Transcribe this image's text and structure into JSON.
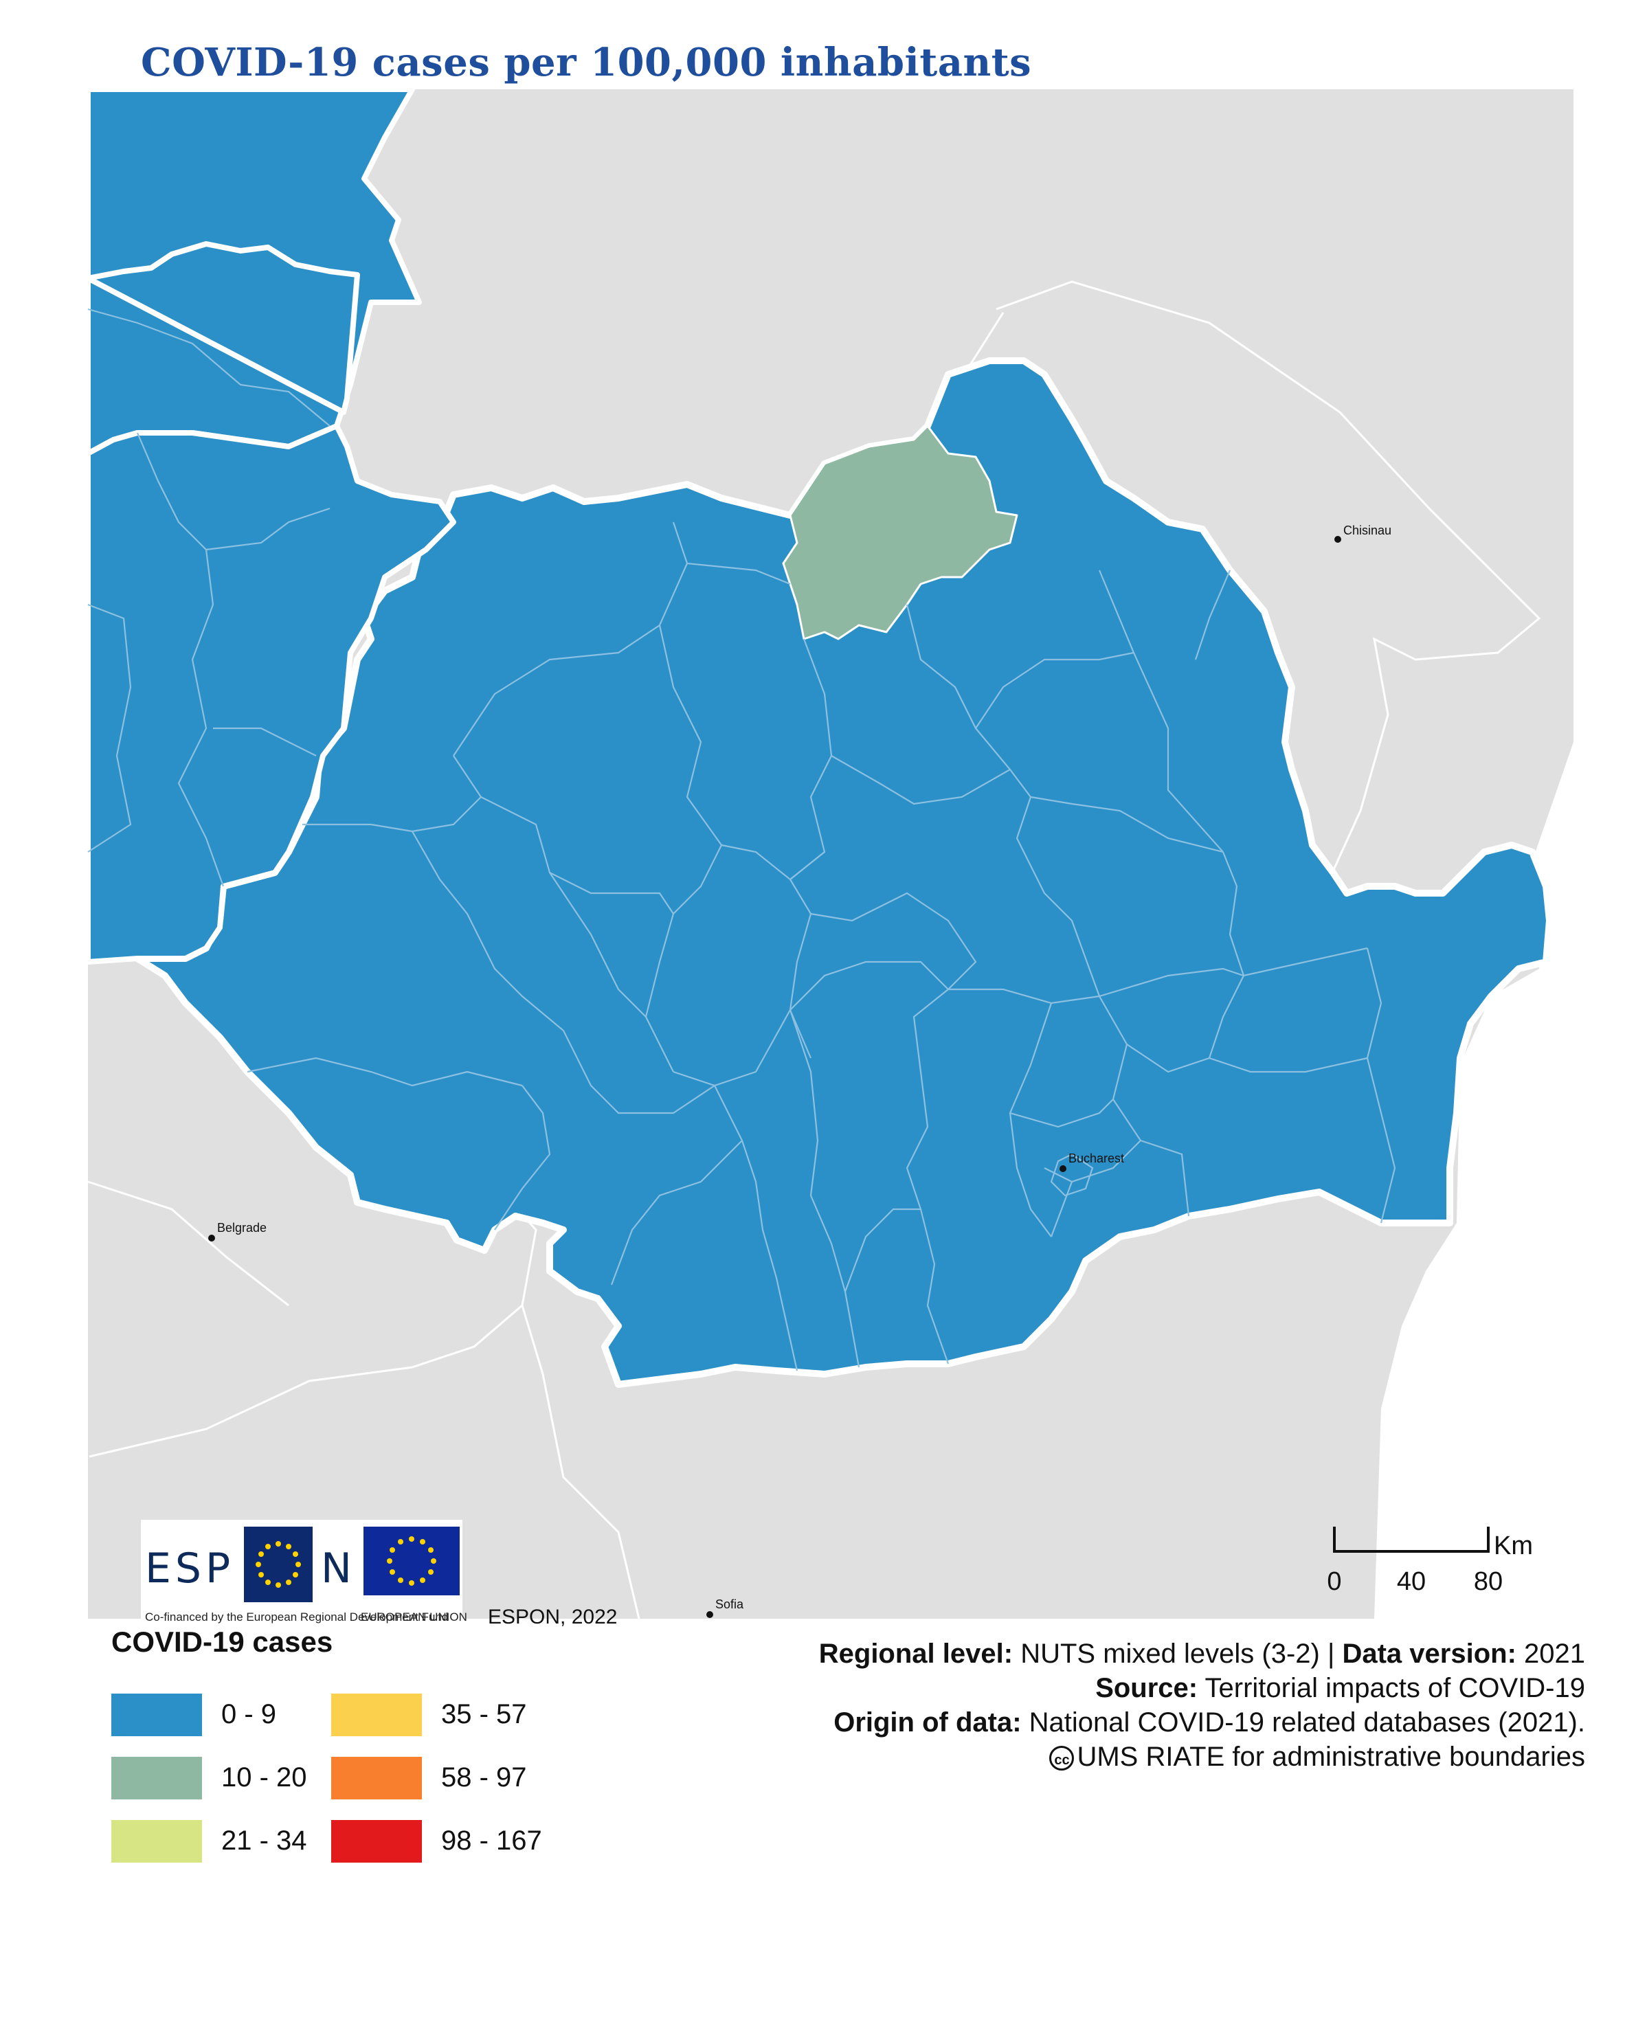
{
  "title": "COVID-19 cases per 100,000 inhabitants",
  "colors": {
    "background_land": "#e0e0e0",
    "sea": "#ffffff",
    "class_0_9": "#2b90c8",
    "class_10_20": "#8fb8a3",
    "class_21_34": "#d8e584",
    "class_35_57": "#fbd04d",
    "class_58_97": "#f77f2e",
    "class_98_167": "#e31a1c",
    "title": "#1f4e9c"
  },
  "legend": {
    "title": "COVID-19 cases",
    "items": [
      {
        "label": "0 - 9",
        "color": "#2b90c8"
      },
      {
        "label": "10 - 20",
        "color": "#8fb8a3"
      },
      {
        "label": "21 - 34",
        "color": "#d8e584"
      },
      {
        "label": "35 - 57",
        "color": "#fbd04d"
      },
      {
        "label": "58 - 97",
        "color": "#f77f2e"
      },
      {
        "label": "98 - 167",
        "color": "#e31a1c"
      }
    ]
  },
  "cities": [
    {
      "name": "Chisinau"
    },
    {
      "name": "Bucharest"
    },
    {
      "name": "Belgrade"
    },
    {
      "name": "Sofia"
    }
  ],
  "scale_bar": {
    "unit": "Km",
    "ticks": [
      "0",
      "40",
      "80"
    ]
  },
  "logos": {
    "espon_word_left": "ESP",
    "espon_word_right": "N",
    "cofinanced": "Co-financed by the European Regional Development Fund",
    "eu": "EUROPEAN UNION"
  },
  "credit": "ESPON, 2022",
  "meta": {
    "regional_level_label": "Regional level:",
    "regional_level_value": "NUTS mixed levels (3-2) |",
    "data_version_label": "Data version:",
    "data_version_value": "2021",
    "source_label": "Source:",
    "source_value": "Territorial impacts of COVID-19",
    "origin_label": "Origin of data:",
    "origin_value": "National COVID-19 related databases (2021).",
    "cc_symbol": "cc",
    "boundaries": "UMS RIATE for administrative boundaries"
  }
}
